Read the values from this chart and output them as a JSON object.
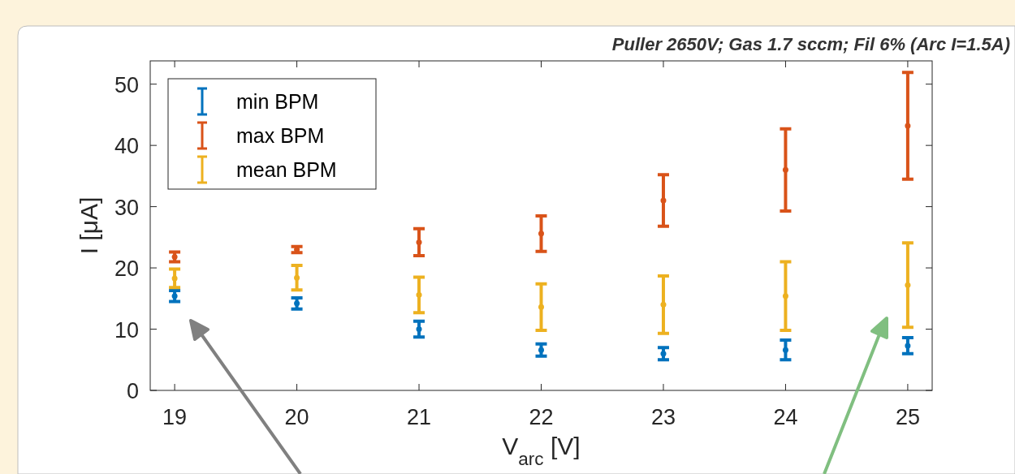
{
  "chart_data": {
    "type": "scatter",
    "title": "Puller 2650V; Gas 1.7 sccm; Fil 6% (Arc I=1.5A)",
    "xlabel": "V$_{arc}$ [V]",
    "ylabel": "I [μA]",
    "x": [
      19,
      20,
      21,
      22,
      23,
      24,
      25
    ],
    "series": [
      {
        "name": "min BPM",
        "color": "#0072bd",
        "values": [
          15.4,
          14.2,
          10,
          6.6,
          6,
          6.6,
          7.3
        ],
        "errors": [
          0.9,
          0.9,
          1.3,
          1.0,
          1.0,
          1.6,
          1.3
        ]
      },
      {
        "name": "max BPM",
        "color": "#d95319",
        "values": [
          21.8,
          23,
          24.2,
          25.6,
          31,
          36,
          43.2
        ],
        "errors": [
          0.8,
          0.5,
          2.2,
          2.9,
          4.2,
          6.7,
          8.7
        ]
      },
      {
        "name": "mean BPM",
        "color": "#edb120",
        "values": [
          18.3,
          18.4,
          15.6,
          13.6,
          14,
          15.4,
          17.2
        ],
        "errors": [
          1.5,
          2.0,
          2.9,
          3.8,
          4.7,
          5.6,
          6.9
        ]
      }
    ],
    "xlim": [
      18.8,
      25.2
    ],
    "xticks": [
      19,
      20,
      21,
      22,
      23,
      24,
      25
    ],
    "ylim": [
      0,
      53.8
    ],
    "yticks": [
      0,
      10,
      20,
      30,
      40,
      50
    ],
    "grid": false,
    "legend": "top left"
  }
}
